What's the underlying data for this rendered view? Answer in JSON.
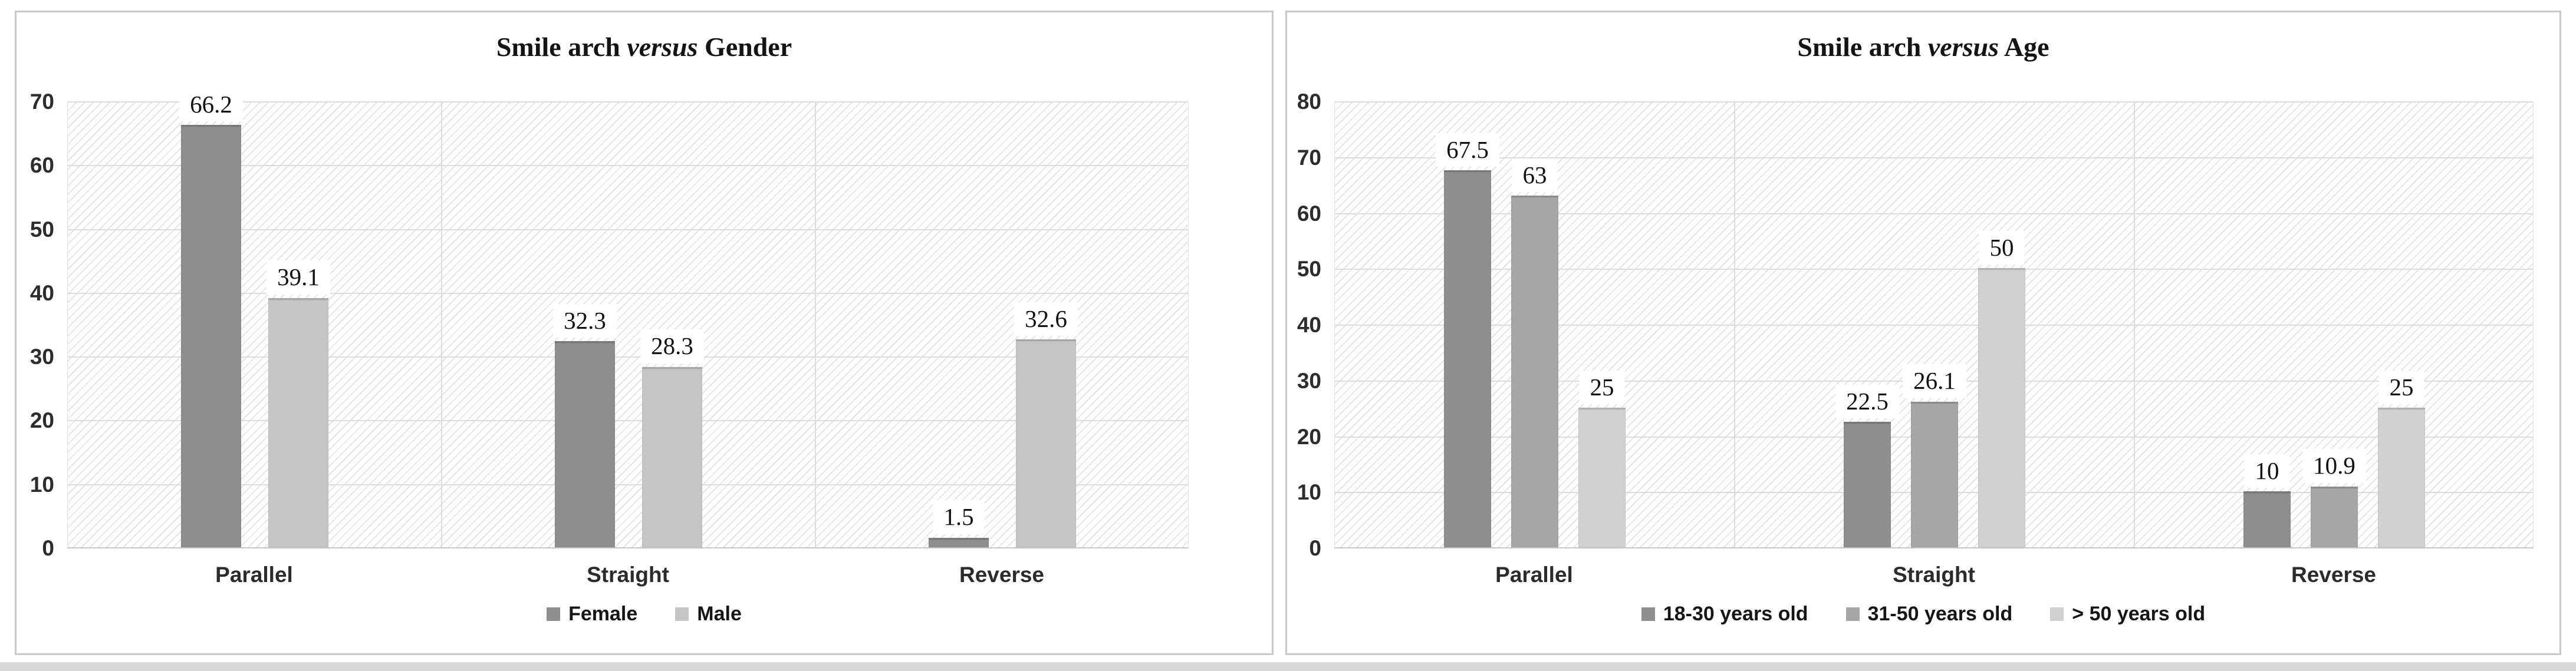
{
  "figure": {
    "panel_border_color": "#c6cacd",
    "bottom_strip_color": "#d9d9d9",
    "gridline_color": "#dcdcdc",
    "hatch_line_color": "#e7e7e7"
  },
  "chart_data": [
    {
      "type": "bar",
      "title": {
        "prefix": "Smile arch ",
        "italic": "versus",
        "suffix": " Gender"
      },
      "title_text": "Smile arch versus Gender",
      "categories": [
        "Parallel",
        "Straight",
        "Reverse"
      ],
      "series": [
        {
          "name": "Female",
          "color": "#8e8e8e",
          "values": [
            66.2,
            32.3,
            1.5
          ]
        },
        {
          "name": "Male",
          "color": "#c5c5c5",
          "values": [
            39.1,
            28.3,
            32.6
          ]
        }
      ],
      "data_labels": [
        [
          "66.2",
          "32.3",
          "1.5"
        ],
        [
          "39.1",
          "28.3",
          "32.6"
        ]
      ],
      "ylim": [
        0,
        70
      ],
      "yticks": [
        "0",
        "10",
        "20",
        "30",
        "40",
        "50",
        "60",
        "70"
      ],
      "xlabel": "",
      "ylabel": "",
      "grid": true,
      "legend_position": "bottom"
    },
    {
      "type": "bar",
      "title": {
        "prefix": "Smile arch ",
        "italic": "versus",
        "suffix": " Age"
      },
      "title_text": "Smile arch versus Age",
      "categories": [
        "Parallel",
        "Straight",
        "Reverse"
      ],
      "series": [
        {
          "name": "18-30 years old",
          "color": "#8e8e8e",
          "values": [
            67.5,
            22.5,
            10
          ]
        },
        {
          "name": "31-50 years old",
          "color": "#a6a6a6",
          "values": [
            63,
            26.1,
            10.9
          ]
        },
        {
          "name": "> 50 years old",
          "color": "#d0d0d0",
          "values": [
            25,
            50,
            25
          ]
        }
      ],
      "data_labels": [
        [
          "67.5",
          "22.5",
          "10"
        ],
        [
          "63",
          "26.1",
          "10.9"
        ],
        [
          "25",
          "50",
          "25"
        ]
      ],
      "ylim": [
        0,
        80
      ],
      "yticks": [
        "0",
        "10",
        "20",
        "30",
        "40",
        "50",
        "60",
        "70",
        "80"
      ],
      "xlabel": "",
      "ylabel": "",
      "grid": true,
      "legend_position": "bottom"
    }
  ]
}
